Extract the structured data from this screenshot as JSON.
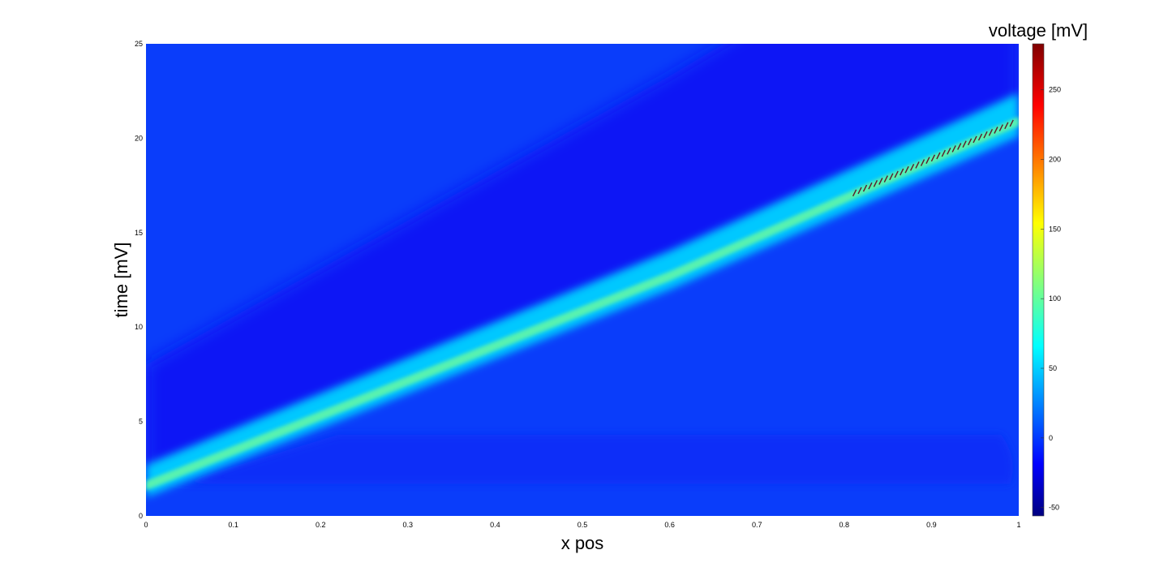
{
  "chart_data": {
    "type": "heatmap",
    "title": "",
    "xlabel": "x pos",
    "ylabel": "time [mV]",
    "colorbar_label": "voltage [mV]",
    "xlim": [
      0,
      1
    ],
    "ylim": [
      0,
      25
    ],
    "x_ticks": [
      "0",
      "0.1",
      "0.2",
      "0.3",
      "0.4",
      "0.5",
      "0.6",
      "0.7",
      "0.8",
      "0.9",
      "1"
    ],
    "y_ticks": [
      "0",
      "5",
      "10",
      "15",
      "20",
      "25"
    ],
    "colorbar_range": [
      -56,
      283
    ],
    "colorbar_ticks": [
      "-50",
      "0",
      "50",
      "100",
      "150",
      "200",
      "250"
    ],
    "colormap": "jet",
    "grid": false,
    "colors": {
      "background_field": "#0a3dfa",
      "refractory_band": "#0818f5",
      "mid_band": "#0a2ef8",
      "wave_edge": "#00c8ff",
      "wave_core": "#58f2b0",
      "wave_peak_artifact": "#5a1a2a"
    },
    "wavefront": {
      "description_x": [
        0.0,
        0.2,
        0.4,
        0.6,
        0.8,
        1.0
      ],
      "time_at_x": [
        1.5,
        5.2,
        8.9,
        12.6,
        16.7,
        20.8
      ]
    }
  }
}
